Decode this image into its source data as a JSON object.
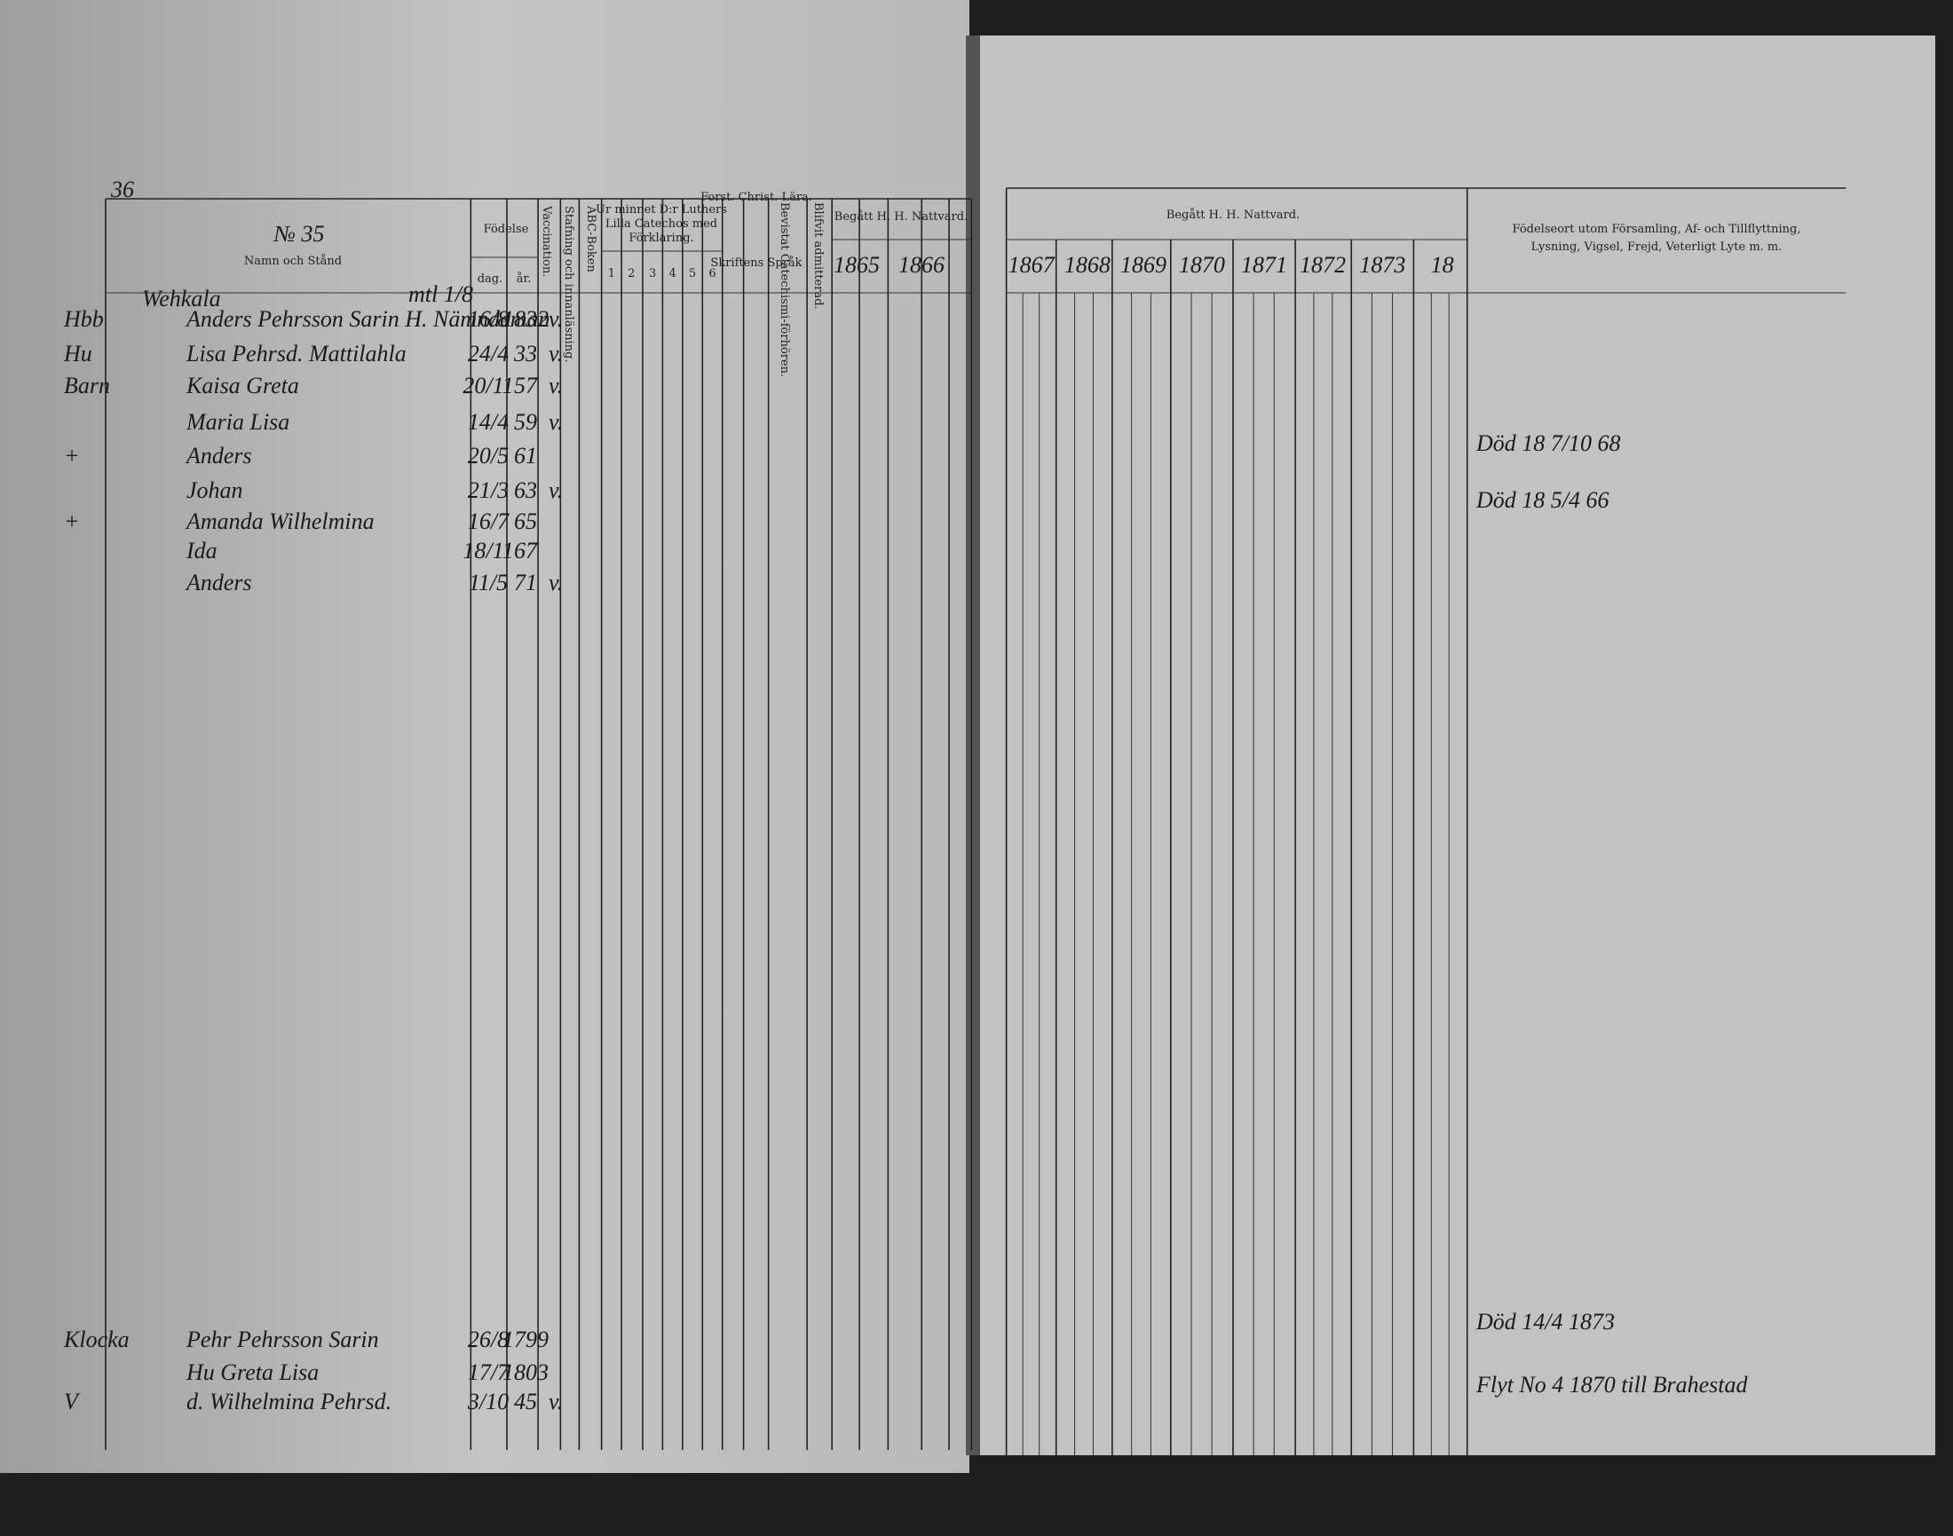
{
  "left_page": {
    "page_number": "36",
    "household_number": "№ 35",
    "name_header": "Namn och Stånd",
    "farm": "Wehkala",
    "farm_note": "mtl 1/8",
    "birth_header": "Födelse",
    "day_header": "dag.",
    "year_header": "år.",
    "vaccination_header": "Vaccination.",
    "reading_header": "Stafning och innanläsning.",
    "abc_header": "ABC-Boken",
    "catechism_header": [
      "Ur minnet D:r Luthers",
      "Lilla Catechos med",
      "Förklaring."
    ],
    "catechism_parts": [
      "1",
      "2",
      "3",
      "4",
      "5",
      "6"
    ],
    "christ_header": "Forst. Christ. Lära.",
    "scripture_header": "Skriftens Språk",
    "examination_header": "Bevistat Catechismi-förhören.",
    "admitted_header": "Blifvit admitterad.",
    "communion_header": "Begått H. H. Nattvard.",
    "communion_years": [
      "1865",
      "1866"
    ],
    "rows": [
      {
        "prefix": "Hbb",
        "name": "Anders Pehrsson Sarin H. Nämndeman",
        "day": "16/8",
        "year": "1832",
        "vaccination": "v."
      },
      {
        "prefix": "Hu",
        "name": "Lisa Pehrsd. Mattilahla",
        "day": "24/4",
        "year": "33",
        "vaccination": "v."
      },
      {
        "prefix": "Barn",
        "name": "Kaisa Greta",
        "day": "20/11",
        "year": "57",
        "vaccination": "v."
      },
      {
        "name": "Maria Lisa",
        "day": "14/4",
        "year": "59",
        "vaccination": "v."
      },
      {
        "prefix": "+",
        "name": "Anders",
        "day": "20/5",
        "year": "61"
      },
      {
        "name": "Johan",
        "day": "21/3",
        "year": "63",
        "vaccination": "v."
      },
      {
        "prefix": "+",
        "name": "Amanda Wilhelmina",
        "day": "16/7",
        "year": "65"
      },
      {
        "name": "Ida",
        "day": "18/11",
        "year": "67"
      },
      {
        "name": "Anders",
        "day": "11/5",
        "year": "71",
        "vaccination": "v."
      },
      {
        "prefix": "Klocka",
        "name": "Pehr Pehrsson Sarin",
        "day": "26/8",
        "year": "1799"
      },
      {
        "name": "Hu Greta Lisa",
        "day": "17/7",
        "year": "1803"
      },
      {
        "prefix": "V",
        "name": "d. Wilhelmina Pehrsd.",
        "day": "3/10",
        "year": "45",
        "vaccination": "v."
      }
    ]
  },
  "right_page": {
    "communion_header": "Begått H. H. Nattvard.",
    "communion_years": [
      "1867",
      "1868",
      "1869",
      "1870",
      "1871",
      "1872",
      "1873",
      "18"
    ],
    "remarks_header": [
      "Födelseort utom Församling, Af- och Tillflyttning,",
      "Lysning, Vigsel, Frejd, Veterligt Lyte m. m."
    ],
    "remarks": [
      "Död 18 7/10 68",
      "Död 18 5/4 66",
      "Död 14/4 1873",
      "Flyt No 4 1870 till Brahestad"
    ]
  }
}
